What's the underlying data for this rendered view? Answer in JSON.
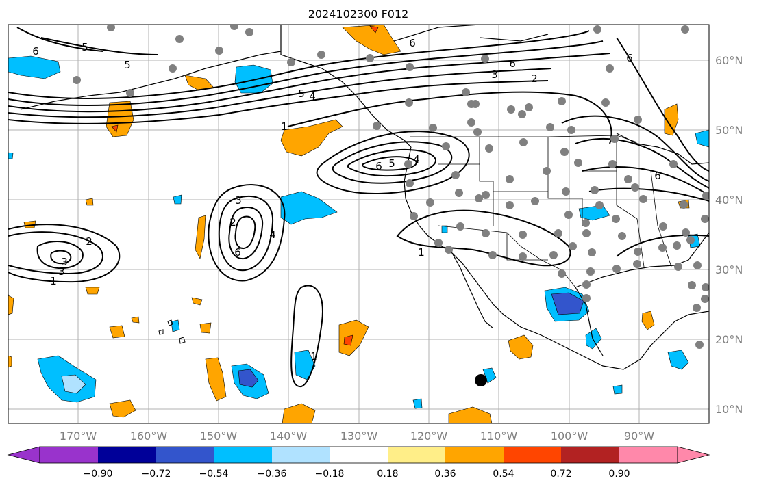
{
  "title": "2024102300 F012",
  "map": {
    "lon_labels": [
      "170°W",
      "160°W",
      "150°W",
      "140°W",
      "130°W",
      "120°W",
      "110°W",
      "100°W",
      "90°W"
    ],
    "lat_labels": [
      "60°N",
      "50°N",
      "40°N",
      "30°N",
      "20°N",
      "10°N"
    ],
    "gridlines": true,
    "contour_labels": [
      "6",
      "5",
      "5",
      "6",
      "5",
      "4",
      "1",
      "6",
      "3",
      "2",
      "6",
      "5",
      "4",
      "3",
      "2",
      "6",
      "3",
      "4",
      "6",
      "2",
      "3",
      "1",
      "1",
      "1",
      "6"
    ]
  },
  "colorbar": {
    "ticks": [
      "−0.90",
      "−0.72",
      "−0.54",
      "−0.36",
      "−0.18",
      "0.18",
      "0.36",
      "0.54",
      "0.72",
      "0.90"
    ],
    "colors": [
      "#9933cc",
      "#000099",
      "#3355cc",
      "#00bfff",
      "#b0e2ff",
      "#ffffff",
      "#ffee88",
      "#ffa500",
      "#ff4500",
      "#b22222",
      "#ff88aa"
    ]
  }
}
